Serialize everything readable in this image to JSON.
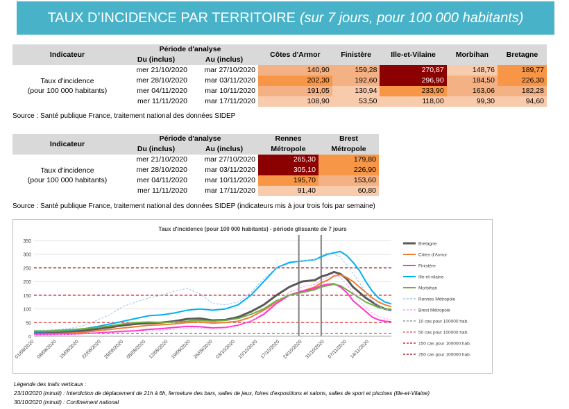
{
  "banner": {
    "title": "TAUX D’INCIDENCE PAR TERRITOIRE",
    "subtitle": "(sur 7 jours, pour 100 000 habitants)"
  },
  "table1": {
    "h_indicateur": "Indicateur",
    "h_periode": "Période d'analyse",
    "h_du": "Du (inclus)",
    "h_au": "Au (inclus)",
    "columns": [
      "Côtes d'Armor",
      "Finistère",
      "Ille-et-Vilaine",
      "Morbihan",
      "Bretagne"
    ],
    "label_line1": "Taux d'incidence",
    "label_line2": "(pour 100 000 habitants)",
    "rows": [
      {
        "du": "mer 21/10/2020",
        "au": "mar 27/10/2020",
        "values": [
          "140,90",
          "159,28",
          "270,87",
          "148,76",
          "189,77"
        ]
      },
      {
        "du": "mer 28/10/2020",
        "au": "mar 03/11/2020",
        "values": [
          "202,30",
          "192,60",
          "296,90",
          "184,50",
          "226,30"
        ]
      },
      {
        "du": "mer 04/11/2020",
        "au": "mar 10/11/2020",
        "values": [
          "191,05",
          "130,94",
          "233,90",
          "163,06",
          "182,28"
        ]
      },
      {
        "du": "mer 11/11/2020",
        "au": "mar 17/11/2020",
        "values": [
          "108,90",
          "53,50",
          "118,00",
          "99,30",
          "94,60"
        ]
      }
    ],
    "source": "Source  : Santé publique France, traitement national des données SIDEP"
  },
  "table2": {
    "h_indicateur": "Indicateur",
    "h_periode": "Période d'analyse",
    "h_du": "Du (inclus)",
    "h_au": "Au (inclus)",
    "col1_l1": "Rennes",
    "col1_l2": "Métropole",
    "col2_l1": "Brest",
    "col2_l2": "Métropole",
    "label_line1": "Taux d'incidence",
    "label_line2": "(pour 100 000 habitants)",
    "rows": [
      {
        "du": "mer 21/10/2020",
        "au": "mar 27/10/2020",
        "values": [
          "265,30",
          "179,80"
        ]
      },
      {
        "du": "mer 28/10/2020",
        "au": "mar 03/11/2020",
        "values": [
          "305,10",
          "226,90"
        ]
      },
      {
        "du": "mer 04/11/2020",
        "au": "mar 10/11/2020",
        "values": [
          "195,70",
          "153,60"
        ]
      },
      {
        "du": "mer 11/11/2020",
        "au": "mar 17/11/2020",
        "values": [
          "91,40",
          "60,80"
        ]
      }
    ],
    "source": "Source  : Santé publique France, traitement national des données SIDEP (indicateurs mis à jour trois fois par semaine)"
  },
  "chart_data": {
    "type": "line",
    "title": "Taux d'incidence (pour 100 000 habitants) - période glissante de 7 jours",
    "ylim": [
      0,
      350
    ],
    "yticks": [
      0,
      50,
      100,
      150,
      200,
      250,
      300,
      350
    ],
    "xticks": [
      "01/08/2020",
      "08/08/2020",
      "15/08/2020",
      "22/08/2020",
      "29/08/2020",
      "05/09/2020",
      "12/09/2020",
      "19/09/2020",
      "26/09/2020",
      "03/10/2020",
      "10/10/2020",
      "17/10/2020",
      "24/10/2020",
      "31/10/2020",
      "07/11/2020",
      "14/11/2020"
    ],
    "x": [
      0,
      4,
      8,
      12,
      16,
      20,
      24,
      28,
      32,
      36,
      40,
      44,
      48,
      52,
      56,
      60,
      64,
      68,
      72,
      76,
      80,
      84,
      88,
      90,
      92,
      94,
      96,
      98,
      100,
      102,
      104,
      106,
      108,
      110,
      112
    ],
    "series": [
      {
        "name": "Bretagne",
        "color": "#595959",
        "width": 3,
        "dash": "",
        "values": [
          14,
          14,
          15,
          17,
          21,
          27,
          33,
          40,
          45,
          48,
          50,
          55,
          63,
          65,
          58,
          60,
          70,
          90,
          115,
          150,
          180,
          200,
          205,
          218,
          225,
          235,
          228,
          210,
          180,
          160,
          140,
          125,
          110,
          100,
          95
        ]
      },
      {
        "name": "Côtes d'Armor",
        "color": "#ed7d31",
        "width": 2,
        "dash": "",
        "values": [
          8,
          9,
          10,
          12,
          15,
          20,
          25,
          30,
          35,
          40,
          42,
          45,
          50,
          52,
          48,
          50,
          55,
          70,
          95,
          125,
          150,
          165,
          180,
          195,
          205,
          220,
          225,
          215,
          200,
          180,
          160,
          140,
          125,
          115,
          108
        ]
      },
      {
        "name": "Finistère",
        "color": "#ff33cc",
        "width": 2,
        "dash": "",
        "values": [
          6,
          6,
          7,
          8,
          10,
          12,
          15,
          18,
          20,
          25,
          28,
          32,
          36,
          35,
          30,
          32,
          40,
          55,
          80,
          120,
          150,
          165,
          175,
          185,
          190,
          192,
          180,
          160,
          130,
          110,
          90,
          70,
          60,
          55,
          53
        ]
      },
      {
        "name": "Ille-et-vilaine",
        "color": "#00b0f0",
        "width": 2,
        "dash": "",
        "values": [
          16,
          17,
          18,
          22,
          28,
          36,
          45,
          55,
          65,
          75,
          78,
          85,
          95,
          100,
          95,
          100,
          115,
          150,
          200,
          250,
          270,
          275,
          280,
          290,
          300,
          305,
          310,
          295,
          270,
          240,
          200,
          165,
          140,
          125,
          118
        ]
      },
      {
        "name": "Morbihan",
        "color": "#70ad47",
        "width": 2,
        "dash": "",
        "values": [
          20,
          20,
          22,
          24,
          28,
          32,
          38,
          45,
          50,
          52,
          50,
          52,
          55,
          58,
          55,
          58,
          65,
          80,
          100,
          130,
          150,
          160,
          170,
          180,
          185,
          190,
          185,
          170,
          155,
          140,
          125,
          115,
          105,
          100,
          99
        ]
      },
      {
        "name": "Rennes Métropole",
        "color": "#9dc3e6",
        "width": 1,
        "dash": "3,2",
        "values": [
          20,
          22,
          25,
          30,
          40,
          60,
          80,
          110,
          125,
          140,
          150,
          165,
          175,
          155,
          120,
          115,
          125,
          160,
          210,
          250,
          265,
          275,
          280,
          295,
          305,
          300,
          290,
          260,
          230,
          195,
          160,
          130,
          110,
          100,
          91
        ]
      },
      {
        "name": "Brest Métropole",
        "color": "#ff99ff",
        "width": 1,
        "dash": "3,2",
        "values": [
          5,
          5,
          6,
          7,
          9,
          11,
          13,
          15,
          18,
          20,
          22,
          26,
          30,
          30,
          28,
          30,
          38,
          55,
          85,
          125,
          160,
          180,
          190,
          205,
          215,
          226,
          215,
          190,
          160,
          130,
          105,
          85,
          72,
          65,
          61
        ]
      }
    ],
    "thresholds": [
      {
        "name": "10 cas pour 100000 hab.",
        "value": 10,
        "color": "#808080"
      },
      {
        "name": "50 cas pour 100000 hab.",
        "value": 50,
        "color": "#e84a4a"
      },
      {
        "name": "150 cas pour 100000 hab.",
        "value": 150,
        "color": "#d6001c"
      },
      {
        "name": "250 cas pour 100000 hab.",
        "value": 250,
        "color": "#9c0000"
      }
    ],
    "vlines_x": [
      83,
      90
    ],
    "legend_position": "right"
  },
  "notes": {
    "title": "Légende des traits verticaux :",
    "line1": "23/10/2020 (minuit) : Interdiction de déplacement de 21h à 6h, fermeture des bars, salles de jeux, foires d'expositions et salons, salles de sport et piscines (Ille-et-Vilaine)",
    "line2": "30/10/2020 (minuit) : Confinement national"
  }
}
